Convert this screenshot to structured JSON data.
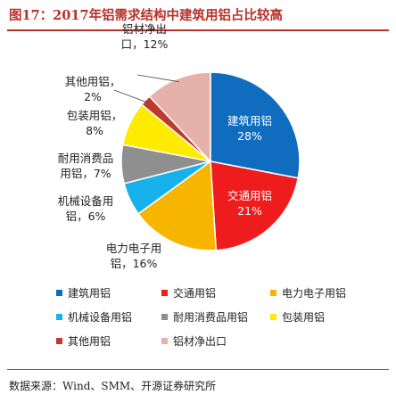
{
  "page": {
    "title": "图17：2017年铝需求结构中建筑用铝占比较高",
    "source": "数据来源：Wind、SMM、开源证券研究所"
  },
  "chart_data": {
    "type": "pie",
    "start_angle_deg": 0,
    "direction": "clockwise",
    "slices": [
      {
        "name": "建筑用铝",
        "value": 28,
        "label": "28%",
        "color": "#0f6cbf",
        "label_inside": true,
        "label_color": "#ffffff"
      },
      {
        "name": "交通用铝",
        "value": 21,
        "label": "21%",
        "color": "#ee1c1c",
        "label_inside": true,
        "label_color": "#ffffff"
      },
      {
        "name": "电力电子用铝",
        "value": 16,
        "label": "16%",
        "color": "#f7b500",
        "label_inside": false
      },
      {
        "name": "机械设备用铝",
        "value": 6,
        "label": "6%",
        "color": "#17b1ec",
        "label_inside": false
      },
      {
        "name": "耐用消费品用铝",
        "value": 7,
        "label": "7%",
        "color": "#8f8f8f",
        "label_inside": false
      },
      {
        "name": "包装用铝",
        "value": 8,
        "label": "8%",
        "color": "#ffeb00",
        "label_inside": false
      },
      {
        "name": "其他用铝",
        "value": 2,
        "label": "2%",
        "color": "#c0392b",
        "label_inside": false
      },
      {
        "name": "铝材净出口",
        "value": 12,
        "label": "12%",
        "color": "#e6b1aa",
        "label_inside": false
      }
    ],
    "callouts": [
      {
        "line1": "建筑用铝",
        "line2": "28%"
      },
      {
        "line1": "交通用铝",
        "line2": "21%"
      },
      {
        "line1": "电力电子用",
        "line2": "铝，16%"
      },
      {
        "line1": "机械设备用",
        "line2": "铝，6%"
      },
      {
        "line1": "耐用消费品",
        "line2": "用铝，7%"
      },
      {
        "line1": "包装用铝，",
        "line2": "8%"
      },
      {
        "line1": "其他用铝，",
        "line2": "2%"
      },
      {
        "line1": "铝材净出",
        "line2": "口，12%"
      }
    ],
    "legend": [
      "建筑用铝",
      "交通用铝",
      "电力电子用铝",
      "机械设备用铝",
      "耐用消费品用铝",
      "包装用铝",
      "其他用铝",
      "铝材净出口"
    ]
  }
}
